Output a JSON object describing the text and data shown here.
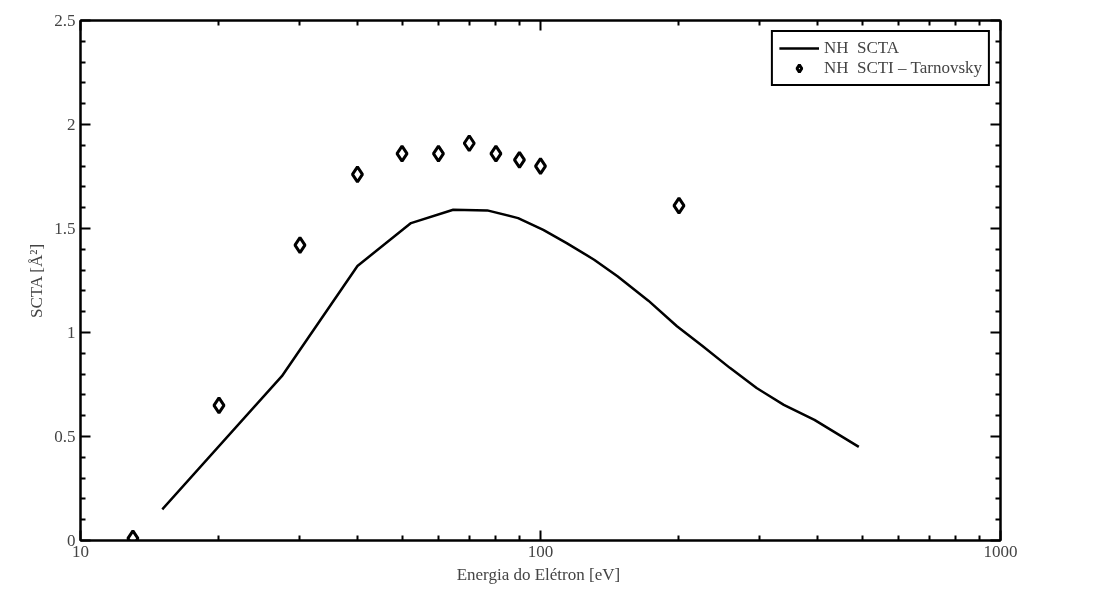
{
  "chart_data": {
    "type": "line",
    "xlabel": "Energia do Elétron  [eV]",
    "ylabel": "SCTA [Å²]",
    "log": "x",
    "xlim": [
      10,
      1000
    ],
    "ylim": [
      0,
      2.5
    ],
    "xticks": [
      10,
      100,
      1000
    ],
    "yticks": [
      0,
      0.5,
      1,
      1.5,
      2,
      2.5
    ],
    "grid": false,
    "legend": "top right",
    "series": [
      {
        "name": "NH  SCTA",
        "type": "line",
        "color": "#000000",
        "line_style": "solid",
        "marker": "none",
        "x": [
          15.06,
          27.4,
          40,
          52.3,
          64.6,
          76.6,
          89.4,
          101.4,
          114,
          130.8,
          147,
          171.6,
          198,
          225,
          258,
          295,
          338,
          394,
          492
        ],
        "values": [
          0.15,
          0.79,
          1.32,
          1.526,
          1.59,
          1.587,
          1.55,
          1.493,
          1.43,
          1.35,
          1.27,
          1.153,
          1.03,
          0.935,
          0.83,
          0.733,
          0.652,
          0.58,
          0.45
        ]
      },
      {
        "name": "NH  SCTI – Tarnovsky",
        "type": "scatter",
        "color": "#000000",
        "marker": "diamond",
        "x": [
          13,
          20,
          30,
          40,
          50,
          60,
          70,
          80,
          90,
          100,
          200
        ],
        "values": [
          0.01,
          0.65,
          1.42,
          1.76,
          1.86,
          1.86,
          1.91,
          1.86,
          1.83,
          1.8,
          1.61
        ]
      }
    ]
  }
}
